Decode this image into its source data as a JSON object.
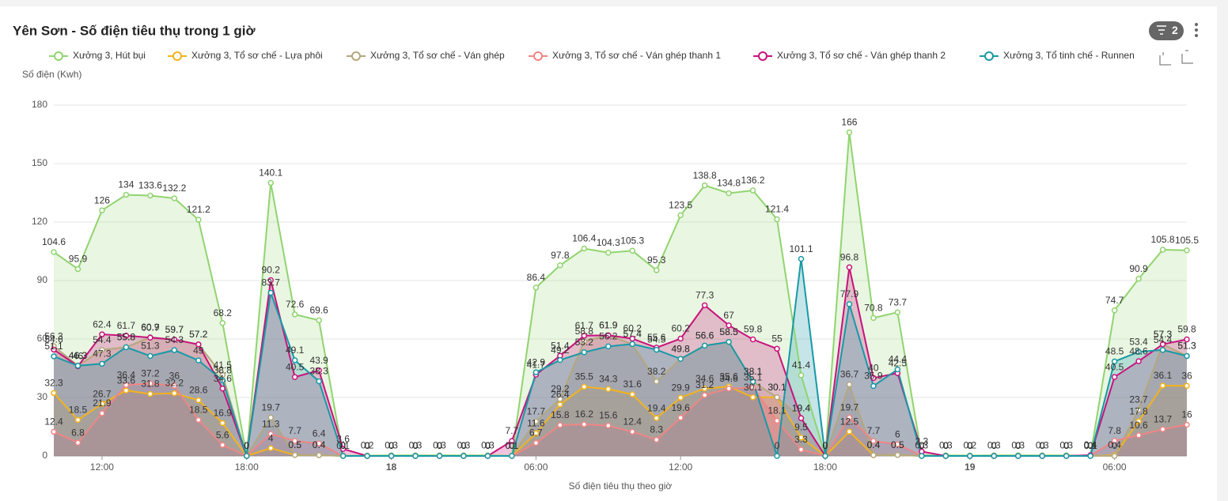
{
  "filter_badge": "2",
  "chart_data": {
    "type": "line",
    "area": true,
    "title": "Yên Sơn - Số điện tiêu thụ trong 1 giờ",
    "y_axis_label": "Số điện (Kwh)",
    "x_axis_label": "Số điện tiêu thụ theo giờ",
    "categories": [
      null,
      null,
      "12:00",
      null,
      null,
      null,
      null,
      null,
      "18:00",
      null,
      null,
      null,
      null,
      null,
      "18",
      null,
      null,
      null,
      null,
      null,
      "06:00",
      null,
      null,
      null,
      null,
      null,
      "12:00",
      null,
      null,
      null,
      null,
      null,
      "18:00",
      null,
      null,
      null,
      null,
      null,
      "19",
      null,
      null,
      null,
      null,
      null,
      "06:00",
      null,
      null,
      null
    ],
    "ylim": [
      0,
      180
    ],
    "yticks": [
      0,
      30,
      60,
      90,
      120,
      150,
      180
    ],
    "grid": true,
    "series": [
      {
        "name": "Xưởng 3, Hút bụi",
        "color": "#91d46f",
        "values": [
          104.6,
          95.9,
          126,
          134,
          133.6,
          132.2,
          121.2,
          68.2,
          0,
          140.1,
          72.6,
          69.6,
          0.1,
          0.2,
          0.3,
          0.3,
          0.3,
          0.3,
          0.3,
          0.1,
          86.4,
          97.8,
          106.4,
          104.3,
          105.3,
          95.3,
          123.5,
          138.8,
          134.8,
          136.2,
          121.4,
          41.4,
          0,
          166,
          70.8,
          73.7,
          0.3,
          0.3,
          0.2,
          0.3,
          0.3,
          0.3,
          0.3,
          0.1,
          74.7,
          90.9,
          105.8,
          105.5
        ]
      },
      {
        "name": "Xưởng 3, Tổ sơ chế - Lựa phôi",
        "color": "#f2b31c",
        "values": [
          32.3,
          18.5,
          26.7,
          33.6,
          31.8,
          32.2,
          28.6,
          16.9,
          0,
          4,
          0.5,
          0.4,
          0,
          0,
          0,
          0,
          0,
          0,
          0,
          0,
          11.6,
          26.4,
          35.5,
          34.3,
          31.6,
          19.4,
          29.9,
          34.6,
          35.6,
          30.1,
          30.1,
          9.5,
          0,
          12.5,
          0.4,
          0.5,
          0,
          0,
          0,
          0,
          0,
          0,
          0,
          0,
          0.4,
          17.8,
          36.1,
          36
        ]
      },
      {
        "name": "Xưởng 3, Tổ sơ chế - Ván ghép",
        "color": "#b3a77c",
        "values": [
          56.3,
          46.3,
          54.4,
          55.8,
          60.9,
          59.7,
          57.2,
          41.5,
          0,
          19.7,
          0.5,
          0.4,
          0,
          0,
          0,
          0,
          0,
          0,
          0,
          0.1,
          17.7,
          29.2,
          58.8,
          61.9,
          57.4,
          38.2,
          49.8,
          56.6,
          58.5,
          38.1,
          30.1,
          19.4,
          0,
          36.7,
          0.4,
          0.5,
          0,
          0,
          0,
          0,
          0,
          0,
          0,
          0.1,
          0,
          23.7,
          57.3,
          51.3
        ]
      },
      {
        "name": "Xưởng 3, Tổ sơ chế - Ván ghép thanh 1",
        "color": "#f08585",
        "values": [
          12.4,
          6.8,
          21.9,
          36.4,
          37.2,
          36,
          18.5,
          5.6,
          0,
          11.3,
          7.7,
          6.4,
          0,
          0,
          0,
          0,
          0,
          0,
          0,
          0,
          6.7,
          15.8,
          16.2,
          15.6,
          12.4,
          8.3,
          19.6,
          31.2,
          34.6,
          35.1,
          18.1,
          3.3,
          0,
          19.7,
          7.7,
          6,
          0,
          0,
          0,
          0,
          0,
          0,
          0,
          0,
          7.8,
          10.6,
          13.7,
          16
        ]
      },
      {
        "name": "Xưởng 3, Tổ sơ chế - Ván ghép thanh 2",
        "color": "#c8127c",
        "values": [
          54.6,
          46,
          62.4,
          61.7,
          60.7,
          59.7,
          57.2,
          34.6,
          0,
          90.2,
          40.5,
          43.9,
          3.6,
          0,
          0,
          0,
          0,
          0,
          0,
          7.7,
          41.7,
          51.4,
          61.7,
          61.9,
          60.2,
          55.6,
          60.2,
          77.3,
          67,
          59.8,
          55,
          19.4,
          0,
          96.8,
          40,
          42.5,
          2.3,
          0,
          0,
          0,
          0,
          0,
          0,
          0.4,
          40.5,
          48.6,
          57.3,
          59.8
        ]
      },
      {
        "name": "Xưởng 3, Tổ tinh chế - Runnen",
        "color": "#1899a6",
        "values": [
          51.1,
          46.3,
          47.3,
          55.8,
          51.3,
          54.3,
          49,
          38.8,
          0,
          83.7,
          49.1,
          38.3,
          0,
          0,
          0,
          0,
          0,
          0,
          0,
          0,
          42.9,
          49.2,
          53.2,
          56.2,
          57.4,
          54.5,
          49.8,
          56.6,
          58.5,
          38.1,
          0,
          101.1,
          0,
          77.9,
          35.9,
          44.4,
          0,
          0,
          0,
          0,
          0,
          0,
          0,
          0,
          48.5,
          53.4,
          54.4,
          51.3
        ]
      }
    ]
  }
}
